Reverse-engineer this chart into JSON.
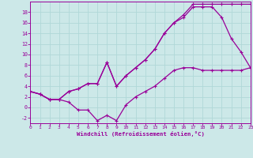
{
  "xlabel": "Windchill (Refroidissement éolien,°C)",
  "bg_color": "#cce8e8",
  "line_color": "#990099",
  "grid_color": "#b0d8d8",
  "xmin": 0,
  "xmax": 23,
  "ymin": -3,
  "ymax": 20,
  "yticks": [
    -2,
    0,
    2,
    4,
    6,
    8,
    10,
    12,
    14,
    16,
    18
  ],
  "xticks": [
    0,
    1,
    2,
    3,
    4,
    5,
    6,
    7,
    8,
    9,
    10,
    11,
    12,
    13,
    14,
    15,
    16,
    17,
    18,
    19,
    20,
    21,
    22,
    23
  ],
  "line1_x": [
    0,
    1,
    2,
    3,
    4,
    5,
    6,
    7,
    8,
    9,
    10,
    11,
    12,
    13,
    14,
    15,
    16,
    17,
    18,
    19,
    20,
    21,
    22,
    23
  ],
  "line1_y": [
    3,
    2.5,
    1.5,
    1.5,
    1.0,
    -0.5,
    -0.5,
    -2.5,
    -1.5,
    -2.5,
    0.5,
    2,
    3,
    4,
    5.5,
    7,
    7.5,
    7.5,
    7.0,
    7.0,
    7.0,
    7.0,
    7.0,
    7.5
  ],
  "line2_x": [
    0,
    1,
    2,
    3,
    4,
    5,
    6,
    7,
    8,
    9,
    10,
    11,
    12,
    13,
    14,
    15,
    16,
    17,
    18,
    19,
    20,
    21,
    22,
    23
  ],
  "line2_y": [
    3,
    2.5,
    1.5,
    1.5,
    3.0,
    3.5,
    4.5,
    4.5,
    8.5,
    4.0,
    6.0,
    7.5,
    9.0,
    11.0,
    14.0,
    16.0,
    17.0,
    19.0,
    19.0,
    19.0,
    17.0,
    13.0,
    10.5,
    7.5
  ],
  "line3_x": [
    0,
    1,
    2,
    3,
    4,
    5,
    6,
    7,
    8,
    9,
    10,
    11,
    12,
    13,
    14,
    15,
    16,
    17,
    18,
    19,
    20,
    21,
    22,
    23
  ],
  "line3_y": [
    3,
    2.5,
    1.5,
    1.5,
    3.0,
    3.5,
    4.5,
    4.5,
    8.5,
    4.0,
    6.0,
    7.5,
    9.0,
    11.0,
    14.0,
    16.0,
    17.5,
    19.5,
    19.5,
    19.5,
    19.5,
    19.5,
    19.5,
    19.5
  ]
}
